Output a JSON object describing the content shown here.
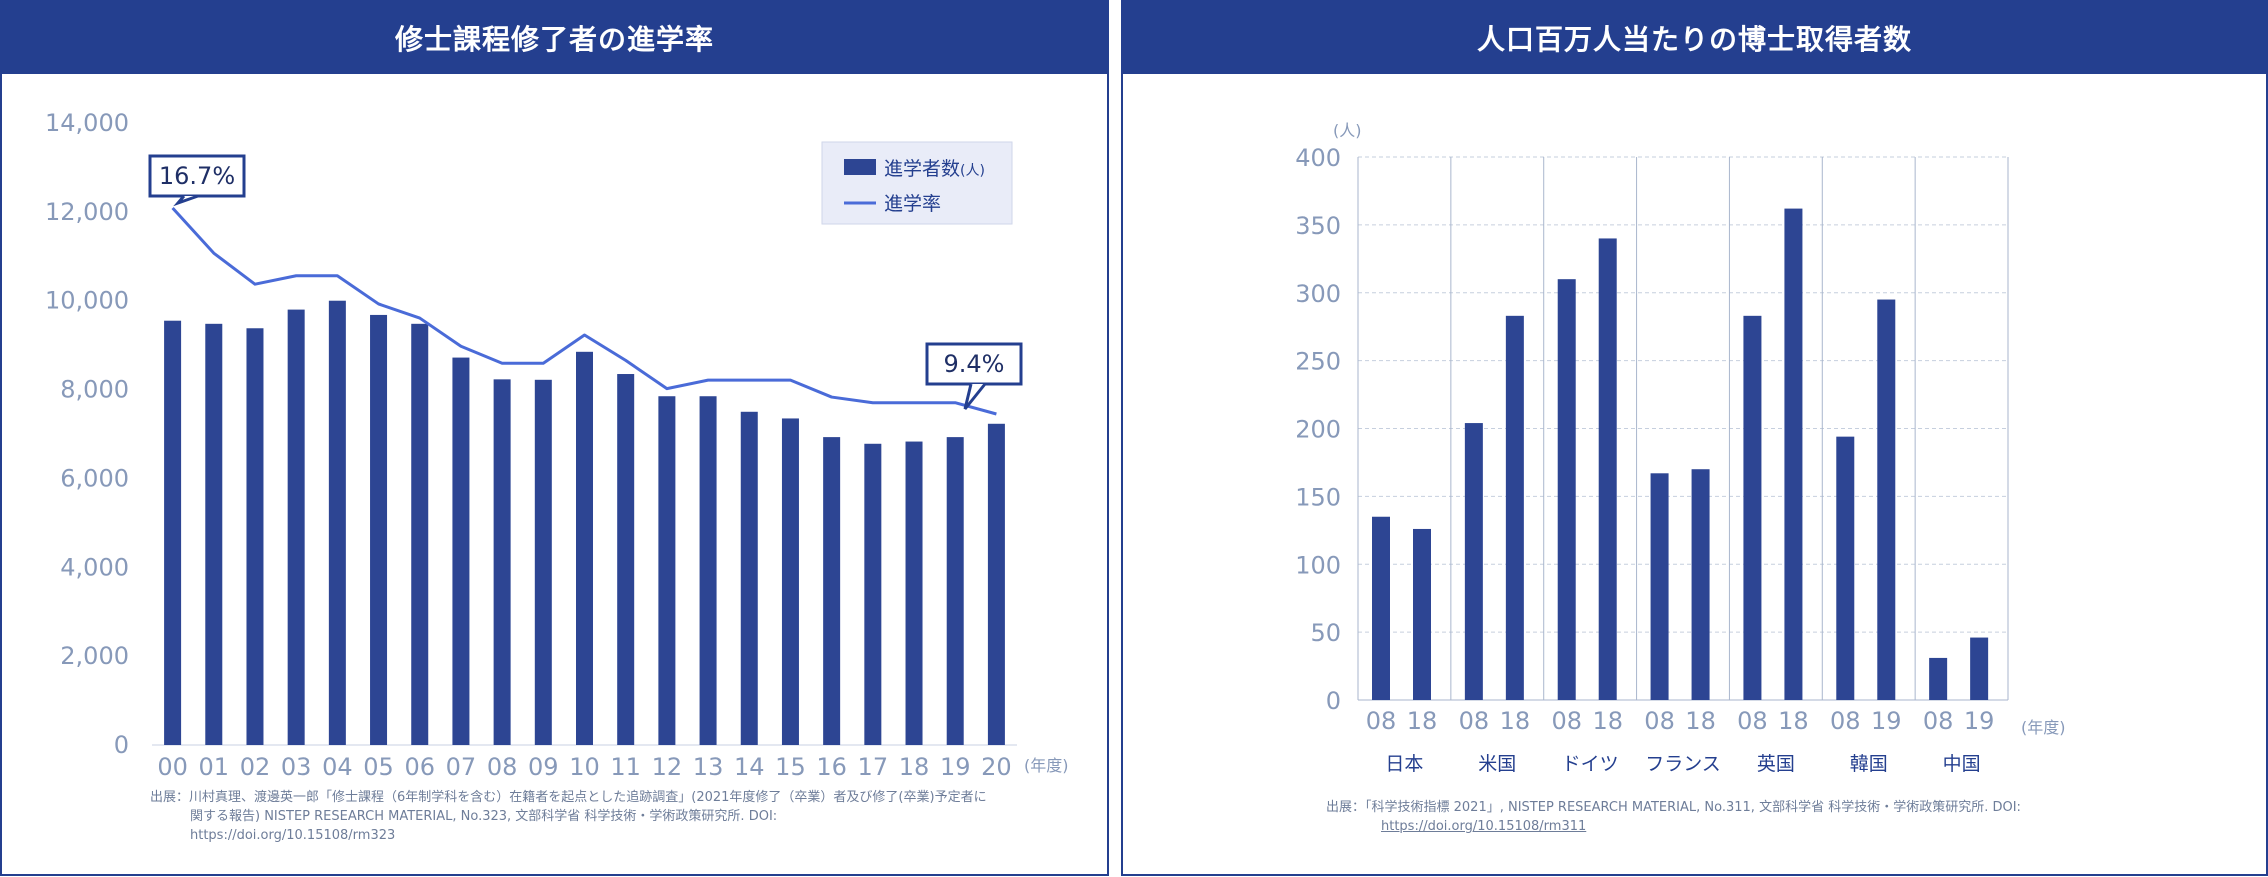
{
  "left": {
    "title": "修士課程修了者の進学率",
    "unit_label": "(年度)",
    "legend": {
      "bar": "進学者数",
      "bar_unit": "(人)",
      "line": "進学率"
    },
    "callouts": [
      {
        "text": "16.7%",
        "index": 0
      },
      {
        "text": "9.4%",
        "index": 20
      }
    ],
    "source_line1": "出展：川村真理、渡邊英一郎「修士課程（6年制学科を含む）在籍者を起点とした追跡調査」(2021年度修了（卒業）者及び修了(卒業)予定者に",
    "source_line2": "関する報告) NISTEP RESEARCH MATERIAL, No.323, 文部科学省 科学技術・学術政策研究所. DOI:",
    "source_link": "https://doi.org/10.15108/rm323"
  },
  "right": {
    "title": "人口百万人当たりの博士取得者数",
    "y_unit": "(人)",
    "unit_label": "(年度)",
    "source_line1": "出展：「科学技術指標 2021」, NISTEP RESEARCH MATERIAL, No.311, 文部科学省 科学技術・学術政策研究所. DOI:",
    "source_link": "https://doi.org/10.15108/rm311"
  },
  "colors": {
    "bar": "#2d4593",
    "line": "#4a6bd8",
    "header": "#243f8f",
    "tick": "#8799b9"
  },
  "chart_data": [
    {
      "type": "bar",
      "title": "修士課程修了者の進学率",
      "categories": [
        "00",
        "01",
        "02",
        "03",
        "04",
        "05",
        "06",
        "07",
        "08",
        "09",
        "10",
        "11",
        "12",
        "13",
        "14",
        "15",
        "16",
        "17",
        "18",
        "19",
        "20"
      ],
      "ylim": [
        0,
        14000
      ],
      "yticks": [
        "0",
        "2,000",
        "4,000",
        "6,000",
        "8,000",
        "10,000",
        "12,000",
        "14,000"
      ],
      "series": [
        {
          "name": "進学者数",
          "type": "bar",
          "values": [
            9550,
            9480,
            9380,
            9800,
            10000,
            9680,
            9480,
            8720,
            8230,
            8220,
            8850,
            8350,
            7850,
            7850,
            7500,
            7350,
            6930,
            6780,
            6830,
            6930,
            7230
          ]
        },
        {
          "name": "進学率",
          "type": "line",
          "unit": "%",
          "values": [
            16.7,
            15.1,
            14.0,
            14.3,
            14.3,
            13.3,
            12.8,
            11.8,
            11.2,
            11.2,
            12.2,
            11.3,
            10.3,
            10.6,
            10.6,
            10.6,
            10.0,
            9.8,
            9.8,
            9.8,
            9.4
          ]
        }
      ],
      "legend": "top-right"
    },
    {
      "type": "bar",
      "title": "人口百万人当たりの博士取得者数",
      "groups": [
        {
          "name": "日本",
          "years": [
            "08",
            "18"
          ],
          "values": [
            135,
            126
          ]
        },
        {
          "name": "米国",
          "years": [
            "08",
            "18"
          ],
          "values": [
            204,
            283
          ]
        },
        {
          "name": "ドイツ",
          "years": [
            "08",
            "18"
          ],
          "values": [
            310,
            340
          ]
        },
        {
          "name": "フランス",
          "years": [
            "08",
            "18"
          ],
          "values": [
            167,
            170
          ]
        },
        {
          "name": "英国",
          "years": [
            "08",
            "18"
          ],
          "values": [
            283,
            362
          ]
        },
        {
          "name": "韓国",
          "years": [
            "08",
            "19"
          ],
          "values": [
            194,
            295
          ]
        },
        {
          "name": "中国",
          "years": [
            "08",
            "19"
          ],
          "values": [
            31,
            46
          ]
        }
      ],
      "ylim": [
        0,
        400
      ],
      "yticks": [
        "0",
        "50",
        "100",
        "150",
        "200",
        "250",
        "300",
        "350",
        "400"
      ],
      "grid": true
    }
  ]
}
